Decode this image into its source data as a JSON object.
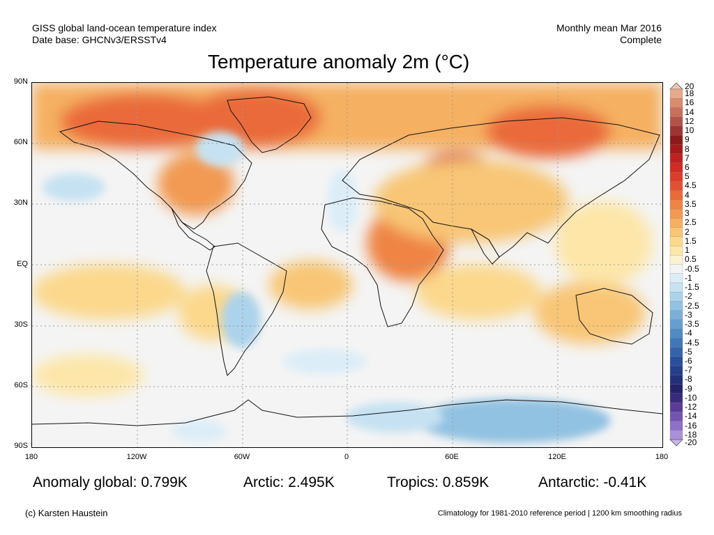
{
  "header": {
    "left_line1": "GISS global land-ocean temperature index",
    "left_line2": "Date base: GHCNv3/ERSSTv4",
    "right_line1": "Monthly mean Mar 2016",
    "right_line2": "Complete",
    "title": "Temperature anomaly 2m (°C)"
  },
  "map": {
    "lat_labels": [
      "90N",
      "60N",
      "30N",
      "EQ",
      "30S",
      "60S",
      "90S"
    ],
    "lon_labels": [
      "180",
      "120W",
      "60W",
      "0",
      "60E",
      "120E",
      "180"
    ],
    "grid": true,
    "colors": {
      "neutral": "#f4f4f4",
      "land_outline": "#111111",
      "grid_line": "#9a9a9a"
    }
  },
  "colorbar": {
    "labels": [
      "20",
      "18",
      "16",
      "14",
      "12",
      "10",
      "9",
      "8",
      "7",
      "6",
      "5",
      "4.5",
      "4",
      "3.5",
      "3",
      "2.5",
      "2",
      "1.5",
      "1",
      "0.5",
      "-0.5",
      "-1",
      "-1.5",
      "-2",
      "-2.5",
      "-3",
      "-3.5",
      "-4",
      "-4.5",
      "-5",
      "-6",
      "-7",
      "-8",
      "-9",
      "-10",
      "-12",
      "-14",
      "-16",
      "-18",
      "-20"
    ],
    "colors": [
      "#f2c6b0",
      "#e8a88a",
      "#d98b6c",
      "#c9705a",
      "#b4524a",
      "#9d3534",
      "#8b1a1a",
      "#a81818",
      "#c02020",
      "#d42a24",
      "#e03a2a",
      "#e55032",
      "#ea6a3a",
      "#ef8444",
      "#f29a52",
      "#f5b062",
      "#f8c676",
      "#fbd88c",
      "#fde6a8",
      "#fdf2d0",
      "#f4f4f4",
      "#dcedf8",
      "#c6e2f2",
      "#acd3ec",
      "#92c2e2",
      "#7ab0d8",
      "#649fcf",
      "#4f8cc4",
      "#3f78b8",
      "#3364aa",
      "#2a4f9a",
      "#24408a",
      "#22307a",
      "#26226a",
      "#3a2a7c",
      "#5a3c98",
      "#7454b0",
      "#8e70c6",
      "#aa90da",
      "#c8b4ec"
    ]
  },
  "stats": {
    "global": "Anomaly global: 0.799K",
    "arctic": "Arctic: 2.495K",
    "tropics": "Tropics: 0.859K",
    "antarctic": "Antarctic: -0.41K"
  },
  "footer": {
    "credit": "(c) Karsten Haustein",
    "note": "Climatology for 1981-2010 reference period | 1200 km smoothing radius"
  }
}
